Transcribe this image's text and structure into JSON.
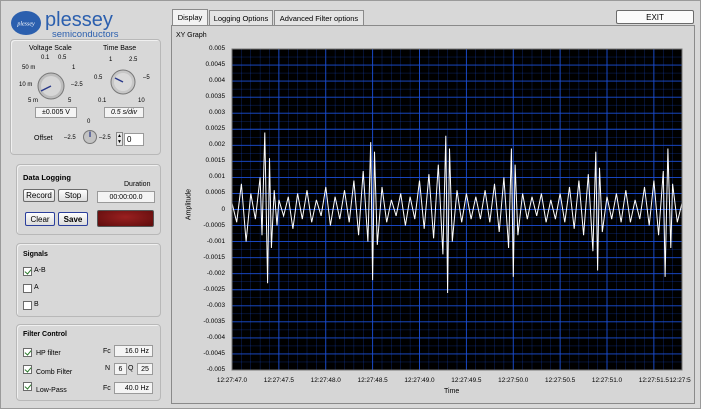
{
  "brand": {
    "name": "plessey",
    "sub": "semiconductors",
    "emblem": "plessey"
  },
  "tabs": [
    {
      "label": "Display",
      "active": true
    },
    {
      "label": "Logging Options",
      "active": false
    },
    {
      "label": "Advanced Filter options",
      "active": false
    }
  ],
  "exit_label": "EXIT",
  "controls": {
    "voltage_scale": {
      "label": "Voltage Scale",
      "ticks": [
        "0.1",
        "0.5",
        "1",
        "50 m",
        "10 m",
        "–2.5",
        "5 m",
        "5"
      ],
      "value": "±0.005 V"
    },
    "time_base": {
      "label": "Time Base",
      "ticks": [
        "1",
        "2.5",
        "0.5",
        "–5",
        "0.1",
        "10"
      ],
      "value": "0.5 s/div"
    },
    "offset": {
      "label": "Offset",
      "ticks": [
        "0",
        "–2.5",
        "–2.5"
      ],
      "value": "0"
    }
  },
  "data_logging": {
    "title": "Data Logging",
    "record": "Record",
    "stop": "Stop",
    "clear": "Clear",
    "save": "Save",
    "duration_label": "Duration",
    "duration_value": "00:00:00.0",
    "indicator_color": "#7a1414"
  },
  "signals": {
    "title": "Signals",
    "items": [
      {
        "label": "A-B",
        "checked": true
      },
      {
        "label": "A",
        "checked": false
      },
      {
        "label": "B",
        "checked": false
      }
    ]
  },
  "filter_control": {
    "title": "Filter Control",
    "hp": {
      "label": "HP filter",
      "checked": true,
      "fc_label": "Fc",
      "fc_value": "16.0 Hz"
    },
    "comb": {
      "label": "Comb Filter",
      "checked": true,
      "n_label": "N",
      "n_value": "6",
      "q_label": "Q",
      "q_value": "25"
    },
    "lowpass": {
      "label": "Low-Pass",
      "checked": true,
      "fc_label": "Fc",
      "fc_value": "40.0 Hz"
    }
  },
  "graph": {
    "label": "XY Graph",
    "bg_color": "#000000",
    "grid_color": "#1b4fd8",
    "trace_color": "#ffffff"
  },
  "chart_data": {
    "type": "line",
    "title": "",
    "xlabel": "Time",
    "ylabel": "Amplitude",
    "xlim": [
      "12:27:47.0",
      "12:27:51.8"
    ],
    "ylim": [
      -0.005,
      0.005
    ],
    "yticks": [
      "0.005",
      "0.0045",
      "0.004",
      "0.0035",
      "0.003",
      "0.0025",
      "0.002",
      "0.0015",
      "0.001",
      "0.0005",
      "0",
      "-0.0005",
      "-0.001",
      "-0.0015",
      "-0.002",
      "-0.0025",
      "-0.003",
      "-0.0035",
      "-0.004",
      "-0.0045",
      "-0.005"
    ],
    "xticks": [
      "12:27:47.0",
      "12:27:47.5",
      "12:27:48.0",
      "12:27:48.5",
      "12:27:49.0",
      "12:27:49.5",
      "12:27:50.0",
      "12:27:50.5",
      "12:27:51.0",
      "12:27:51.5",
      "12:27:5"
    ],
    "grid": true,
    "series": [
      {
        "x": [
          47.0,
          47.05,
          47.1,
          47.15,
          47.2,
          47.25,
          47.3,
          47.32,
          47.35,
          47.38,
          47.4,
          47.42,
          47.45,
          47.48,
          47.5,
          47.55,
          47.6,
          47.65,
          47.7,
          47.75,
          47.8,
          47.85,
          47.9,
          47.95,
          48.0,
          48.05,
          48.1,
          48.15,
          48.2,
          48.25,
          48.3,
          48.35,
          48.4,
          48.45,
          48.48,
          48.5,
          48.52,
          48.55,
          48.6,
          48.65,
          48.7,
          48.75,
          48.8,
          48.85,
          48.9,
          48.95,
          49.0,
          49.05,
          49.1,
          49.15,
          49.2,
          49.25,
          49.28,
          49.3,
          49.32,
          49.35,
          49.4,
          49.45,
          49.5,
          49.55,
          49.6,
          49.65,
          49.7,
          49.75,
          49.8,
          49.85,
          49.9,
          49.95,
          49.98,
          50.0,
          50.02,
          50.05,
          50.1,
          50.15,
          50.2,
          50.25,
          50.3,
          50.35,
          50.4,
          50.45,
          50.5,
          50.55,
          50.6,
          50.65,
          50.7,
          50.75,
          50.8,
          50.85,
          50.88,
          50.9,
          50.92,
          50.95,
          51.0,
          51.05,
          51.1,
          51.15,
          51.2,
          51.25,
          51.3,
          51.35,
          51.4,
          51.45,
          51.5,
          51.55,
          51.6,
          51.62,
          51.65,
          51.68,
          51.7,
          51.75,
          51.8
        ],
        "values": [
          0.0002,
          -0.0004,
          0.0008,
          -0.001,
          0.0005,
          -0.0003,
          0.001,
          -0.0008,
          0.0024,
          -0.0023,
          0.0016,
          -0.0012,
          0.0006,
          -0.0005,
          0.0003,
          -0.0002,
          0.0004,
          -0.0006,
          0.0005,
          -0.0003,
          0.0006,
          -0.0004,
          0.0003,
          -0.0002,
          0.0007,
          -0.0005,
          0.0004,
          -0.0003,
          0.0006,
          -0.0004,
          0.0009,
          -0.0008,
          0.0012,
          -0.001,
          0.0021,
          -0.0022,
          0.0018,
          -0.0011,
          0.0007,
          -0.0004,
          0.0003,
          -0.0002,
          0.0005,
          -0.0005,
          0.0004,
          -0.0003,
          0.0009,
          -0.0006,
          0.0011,
          -0.0009,
          0.0014,
          -0.0014,
          0.0023,
          -0.0026,
          0.0019,
          -0.001,
          0.0006,
          -0.0004,
          0.0005,
          -0.0003,
          0.0004,
          -0.0003,
          0.0006,
          -0.0004,
          0.0008,
          -0.0007,
          0.001,
          -0.0012,
          0.0019,
          -0.0021,
          0.0014,
          -0.0008,
          0.0005,
          -0.0003,
          0.0004,
          -0.0002,
          0.0005,
          -0.0004,
          0.0003,
          -0.0003,
          0.0005,
          -0.0004,
          0.0007,
          -0.0006,
          0.0009,
          -0.0008,
          0.0011,
          -0.0013,
          0.0018,
          -0.0019,
          0.0013,
          -0.0007,
          0.0004,
          -0.0003,
          0.0005,
          -0.0004,
          0.0006,
          -0.0004,
          0.0003,
          -0.0003,
          0.0007,
          -0.0005,
          0.0009,
          -0.0008,
          0.0012,
          -0.0021,
          0.0019,
          -0.0012,
          0.0008,
          -0.0004,
          0.0002
        ]
      }
    ]
  }
}
